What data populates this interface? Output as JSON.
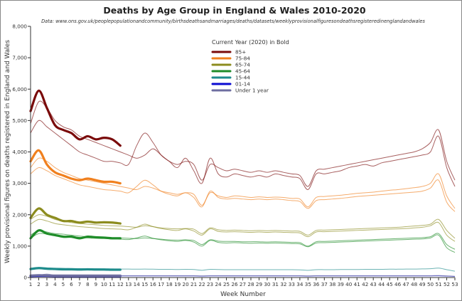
{
  "chart_data": {
    "type": "line",
    "title": "Deaths by Age Group in England & Wales 2010-2020",
    "subtitle": "Data: www.ons.gov.uk/peoplepopulationandcommunity/birthsdeathsandmarriages/deaths/datasets/weeklyprovisionalfiguresondeathsregisteredinenglandandwales",
    "xlabel": "Week Number",
    "ylabel": "Weekly provisional figures on deaths registered in England and Wales",
    "xlim": [
      1,
      53
    ],
    "ylim": [
      0,
      8000
    ],
    "yticks": [
      "0",
      "1,000",
      "2,000",
      "3,000",
      "4,000",
      "5,000",
      "6,000",
      "7,000",
      "8,000"
    ],
    "xticks": [
      "1",
      "2",
      "3",
      "4",
      "5",
      "6",
      "7",
      "8",
      "9",
      "10",
      "11",
      "12",
      "13",
      "14",
      "15",
      "16",
      "17",
      "18",
      "19",
      "20",
      "21",
      "22",
      "23",
      "24",
      "25",
      "26",
      "27",
      "28",
      "29",
      "30",
      "31",
      "32",
      "33",
      "34",
      "35",
      "36",
      "37",
      "38",
      "39",
      "40",
      "41",
      "42",
      "43",
      "44",
      "45",
      "46",
      "47",
      "48",
      "49",
      "50",
      "51",
      "52",
      "53"
    ],
    "grid": false,
    "legend": {
      "title": "Current Year (2020) in Bold",
      "placement": "top-center"
    },
    "groups": [
      {
        "name": "85+",
        "color": "#7a0a0a",
        "current": [
          5300,
          5950,
          5400,
          4850,
          4700,
          4600,
          4400,
          4500,
          4400,
          4450,
          4400,
          4200
        ],
        "previous": [
          [
            4900,
            5600,
            5400,
            5000,
            4800,
            4700,
            4500,
            4400,
            4300,
            4200,
            4100,
            4000,
            3900,
            3800,
            3900,
            4100,
            3900,
            3700,
            3600,
            3700,
            3600,
            3100,
            3600,
            3500,
            3400,
            3450,
            3400,
            3350,
            3400,
            3350,
            3400,
            3350,
            3300,
            3250,
            2900,
            3400,
            3450,
            3500,
            3550,
            3600,
            3650,
            3700,
            3750,
            3800,
            3850,
            3900,
            3950,
            4000,
            4100,
            4300,
            4700,
            3700,
            3100
          ],
          [
            4600,
            5000,
            4800,
            4600,
            4400,
            4200,
            4000,
            3900,
            3800,
            3700,
            3700,
            3650,
            3600,
            4200,
            4600,
            4300,
            3900,
            3700,
            3500,
            3800,
            3400,
            3000,
            3800,
            3300,
            3200,
            3300,
            3250,
            3200,
            3250,
            3200,
            3300,
            3250,
            3200,
            3150,
            2800,
            3300,
            3300,
            3350,
            3400,
            3500,
            3550,
            3600,
            3550,
            3650,
            3700,
            3750,
            3800,
            3850,
            3900,
            4000,
            4500,
            3500,
            2900
          ]
        ]
      },
      {
        "name": "75-84",
        "color": "#f0801e",
        "current": [
          3700,
          4050,
          3600,
          3350,
          3250,
          3150,
          3100,
          3150,
          3100,
          3050,
          3050,
          3000
        ],
        "previous": [
          [
            3500,
            3800,
            3700,
            3500,
            3350,
            3250,
            3150,
            3100,
            3050,
            3000,
            2950,
            2900,
            2850,
            2800,
            2900,
            2850,
            2750,
            2700,
            2650,
            2700,
            2650,
            2300,
            2700,
            2600,
            2550,
            2600,
            2580,
            2550,
            2570,
            2550,
            2560,
            2550,
            2520,
            2500,
            2250,
            2550,
            2580,
            2600,
            2620,
            2650,
            2680,
            2700,
            2720,
            2750,
            2780,
            2800,
            2830,
            2860,
            2900,
            3000,
            3300,
            2600,
            2200
          ],
          [
            3300,
            3500,
            3400,
            3250,
            3150,
            3050,
            2950,
            2900,
            2850,
            2800,
            2780,
            2750,
            2700,
            2900,
            3100,
            2950,
            2750,
            2650,
            2600,
            2700,
            2550,
            2250,
            2750,
            2550,
            2500,
            2520,
            2500,
            2480,
            2500,
            2480,
            2500,
            2480,
            2450,
            2420,
            2200,
            2450,
            2480,
            2500,
            2520,
            2550,
            2580,
            2600,
            2620,
            2640,
            2660,
            2680,
            2700,
            2720,
            2750,
            2850,
            3100,
            2400,
            2100
          ]
        ]
      },
      {
        "name": "65-74",
        "color": "#8c8c1e",
        "current": [
          1900,
          2200,
          2000,
          1900,
          1800,
          1800,
          1750,
          1780,
          1750,
          1760,
          1750,
          1720
        ],
        "previous": [
          [
            1850,
            2000,
            1950,
            1850,
            1800,
            1750,
            1720,
            1700,
            1680,
            1660,
            1650,
            1640,
            1620,
            1600,
            1650,
            1620,
            1580,
            1560,
            1550,
            1560,
            1540,
            1400,
            1580,
            1520,
            1500,
            1510,
            1500,
            1490,
            1500,
            1490,
            1500,
            1490,
            1480,
            1470,
            1350,
            1500,
            1510,
            1520,
            1530,
            1540,
            1550,
            1560,
            1570,
            1580,
            1590,
            1600,
            1620,
            1640,
            1660,
            1700,
            1850,
            1500,
            1250
          ],
          [
            1700,
            1850,
            1800,
            1720,
            1680,
            1650,
            1620,
            1600,
            1580,
            1560,
            1550,
            1540,
            1520,
            1600,
            1700,
            1620,
            1560,
            1520,
            1500,
            1550,
            1480,
            1350,
            1550,
            1470,
            1450,
            1460,
            1450,
            1440,
            1450,
            1440,
            1450,
            1440,
            1430,
            1420,
            1300,
            1450,
            1460,
            1470,
            1480,
            1490,
            1500,
            1510,
            1520,
            1530,
            1540,
            1550,
            1560,
            1580,
            1600,
            1650,
            1750,
            1350,
            1150
          ]
        ]
      },
      {
        "name": "45-64",
        "color": "#1e8c28",
        "current": [
          1250,
          1500,
          1400,
          1350,
          1300,
          1300,
          1250,
          1300,
          1280,
          1270,
          1250,
          1250
        ],
        "previous": [
          [
            1350,
            1500,
            1450,
            1400,
            1380,
            1350,
            1320,
            1300,
            1290,
            1280,
            1270,
            1260,
            1250,
            1240,
            1260,
            1240,
            1220,
            1200,
            1190,
            1200,
            1180,
            1050,
            1200,
            1160,
            1150,
            1150,
            1140,
            1140,
            1140,
            1130,
            1140,
            1130,
            1120,
            1110,
            1000,
            1140,
            1150,
            1160,
            1170,
            1180,
            1190,
            1200,
            1210,
            1220,
            1230,
            1240,
            1250,
            1260,
            1270,
            1300,
            1400,
            1050,
            900
          ],
          [
            1250,
            1400,
            1380,
            1340,
            1320,
            1300,
            1280,
            1260,
            1250,
            1240,
            1230,
            1220,
            1210,
            1260,
            1320,
            1250,
            1200,
            1170,
            1150,
            1180,
            1130,
            1000,
            1180,
            1120,
            1100,
            1110,
            1100,
            1090,
            1100,
            1090,
            1100,
            1090,
            1080,
            1070,
            980,
            1100,
            1110,
            1120,
            1130,
            1140,
            1150,
            1160,
            1170,
            1180,
            1190,
            1200,
            1210,
            1220,
            1230,
            1260,
            1350,
            950,
            800
          ]
        ]
      },
      {
        "name": "15-44",
        "color": "#1e8c8c",
        "current": [
          270,
          300,
          280,
          270,
          260,
          260,
          255,
          260,
          255,
          255,
          250,
          250
        ],
        "previous": [
          [
            300,
            320,
            310,
            300,
            295,
            290,
            285,
            280,
            280,
            275,
            275,
            270,
            270,
            265,
            270,
            265,
            260,
            260,
            255,
            260,
            255,
            230,
            260,
            255,
            250,
            250,
            250,
            250,
            250,
            250,
            250,
            250,
            250,
            245,
            230,
            250,
            250,
            250,
            255,
            255,
            255,
            260,
            260,
            260,
            265,
            265,
            270,
            270,
            275,
            280,
            300,
            250,
            200
          ]
        ]
      },
      {
        "name": "01-14",
        "color": "#0a0ad2",
        "current": [
          50,
          55,
          55,
          50,
          50,
          50,
          50,
          50,
          50,
          50,
          50,
          50
        ],
        "previous": [
          [
            50,
            55,
            55,
            50,
            50,
            50,
            50,
            50,
            50,
            50,
            50,
            50,
            50,
            50,
            50,
            50,
            50,
            50,
            50,
            50,
            50,
            45,
            50,
            50,
            50,
            50,
            50,
            50,
            50,
            50,
            50,
            50,
            50,
            50,
            45,
            50,
            50,
            50,
            50,
            50,
            50,
            50,
            50,
            50,
            50,
            50,
            50,
            50,
            50,
            50,
            55,
            45,
            35
          ]
        ]
      },
      {
        "name": "Under 1 year",
        "color": "#6e6ea0",
        "current": [
          60,
          70,
          65,
          60,
          60,
          60,
          60,
          60,
          60,
          60,
          60,
          60
        ],
        "previous": [
          [
            60,
            75,
            110,
            70,
            60,
            60,
            60,
            60,
            60,
            60,
            60,
            60,
            60,
            60,
            60,
            60,
            60,
            60,
            60,
            60,
            60,
            55,
            60,
            60,
            60,
            60,
            60,
            60,
            60,
            60,
            60,
            60,
            60,
            60,
            55,
            60,
            60,
            60,
            60,
            60,
            60,
            60,
            60,
            60,
            60,
            60,
            60,
            60,
            60,
            60,
            65,
            55,
            40
          ]
        ]
      }
    ]
  }
}
